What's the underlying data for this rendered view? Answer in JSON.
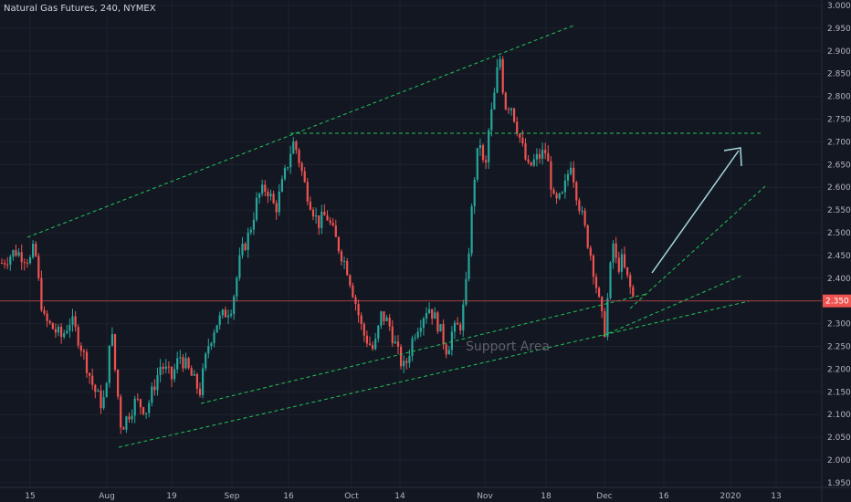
{
  "header": {
    "symbol_label": "Natural Gas Futures, 240, NYMEX"
  },
  "colors": {
    "background": "#131722",
    "up_candle": "#26a69a",
    "down_candle": "#ef5350",
    "trendline": "#21c45a",
    "arrow": "#a7d8de",
    "price_line": "#ef5350",
    "grid": "#1e222d",
    "axis_text": "#b2b5be"
  },
  "chart_data": {
    "type": "candlestick",
    "title": "Natural Gas Futures, 240, NYMEX",
    "x_ticks": [
      "15",
      "Aug",
      "19",
      "Sep",
      "16",
      "Oct",
      "14",
      "Nov",
      "18",
      "Dec",
      "16",
      "2020",
      "13"
    ],
    "y_ticks": [
      "3.000",
      "2.950",
      "2.900",
      "2.850",
      "2.800",
      "2.750",
      "2.700",
      "2.650",
      "2.600",
      "2.550",
      "2.500",
      "2.450",
      "2.400",
      "2.350",
      "2.300",
      "2.250",
      "2.200",
      "2.150",
      "2.100",
      "2.050",
      "2.000",
      "1.950"
    ],
    "ylim": [
      1.95,
      3.0
    ],
    "grid": true,
    "last_price": "2.350",
    "price_path": [
      [
        "Jul 11",
        2.43
      ],
      [
        "Jul 13",
        2.46
      ],
      [
        "Jul 15",
        2.44
      ],
      [
        "Jul 16",
        2.47
      ],
      [
        "Jul 17",
        2.38
      ],
      [
        "Jul 18",
        2.31
      ],
      [
        "Jul 22",
        2.27
      ],
      [
        "Jul 24",
        2.31
      ],
      [
        "Jul 26",
        2.26
      ],
      [
        "Jul 29",
        2.16
      ],
      [
        "Jul 31",
        2.12
      ],
      [
        "Aug 1",
        2.16
      ],
      [
        "Aug 2",
        2.31
      ],
      [
        "Aug 3",
        2.22
      ],
      [
        "Aug 5",
        2.07
      ],
      [
        "Aug 7",
        2.1
      ],
      [
        "Aug 9",
        2.13
      ],
      [
        "Aug 12",
        2.11
      ],
      [
        "Aug 14",
        2.16
      ],
      [
        "Aug 16",
        2.21
      ],
      [
        "Aug 19",
        2.18
      ],
      [
        "Aug 21",
        2.23
      ],
      [
        "Aug 23",
        2.2
      ],
      [
        "Aug 26",
        2.15
      ],
      [
        "Aug 28",
        2.25
      ],
      [
        "Aug 30",
        2.3
      ],
      [
        "Sep 3",
        2.34
      ],
      [
        "Sep 5",
        2.45
      ],
      [
        "Sep 7",
        2.5
      ],
      [
        "Sep 9",
        2.58
      ],
      [
        "Sep 11",
        2.6
      ],
      [
        "Sep 13",
        2.55
      ],
      [
        "Sep 16",
        2.66
      ],
      [
        "Sep 17",
        2.7
      ],
      [
        "Sep 18",
        2.68
      ],
      [
        "Sep 20",
        2.6
      ],
      [
        "Sep 23",
        2.52
      ],
      [
        "Sep 25",
        2.54
      ],
      [
        "Sep 27",
        2.49
      ],
      [
        "Sep 30",
        2.42
      ],
      [
        "Oct 2",
        2.35
      ],
      [
        "Oct 4",
        2.28
      ],
      [
        "Oct 7",
        2.24
      ],
      [
        "Oct 9",
        2.32
      ],
      [
        "Oct 11",
        2.3
      ],
      [
        "Oct 14",
        2.22
      ],
      [
        "Oct 15",
        2.2
      ],
      [
        "Oct 17",
        2.28
      ],
      [
        "Oct 20",
        2.34
      ],
      [
        "Oct 22",
        2.3
      ],
      [
        "Oct 24",
        2.24
      ],
      [
        "Oct 25",
        2.28
      ],
      [
        "Oct 27",
        2.3
      ],
      [
        "Oct 28",
        2.38
      ],
      [
        "Oct 29",
        2.52
      ],
      [
        "Oct 30",
        2.65
      ],
      [
        "Oct 31",
        2.7
      ],
      [
        "Nov 1",
        2.62
      ],
      [
        "Nov 2",
        2.72
      ],
      [
        "Nov 4",
        2.82
      ],
      [
        "Nov 5",
        2.9
      ],
      [
        "Nov 6",
        2.82
      ],
      [
        "Nov 7",
        2.77
      ],
      [
        "Nov 8",
        2.79
      ],
      [
        "Nov 11",
        2.7
      ],
      [
        "Nov 13",
        2.64
      ],
      [
        "Nov 15",
        2.66
      ],
      [
        "Nov 18",
        2.68
      ],
      [
        "Nov 20",
        2.56
      ],
      [
        "Nov 22",
        2.58
      ],
      [
        "Nov 24",
        2.66
      ],
      [
        "Nov 25",
        2.6
      ],
      [
        "Nov 27",
        2.52
      ],
      [
        "Nov 29",
        2.44
      ],
      [
        "Dec 1",
        2.33
      ],
      [
        "Dec 2",
        2.28
      ],
      [
        "Dec 3",
        2.38
      ],
      [
        "Dec 4",
        2.48
      ],
      [
        "Dec 5",
        2.42
      ],
      [
        "Dec 6",
        2.44
      ],
      [
        "Dec 9",
        2.35
      ]
    ],
    "annotations": [
      "Support Area"
    ]
  }
}
